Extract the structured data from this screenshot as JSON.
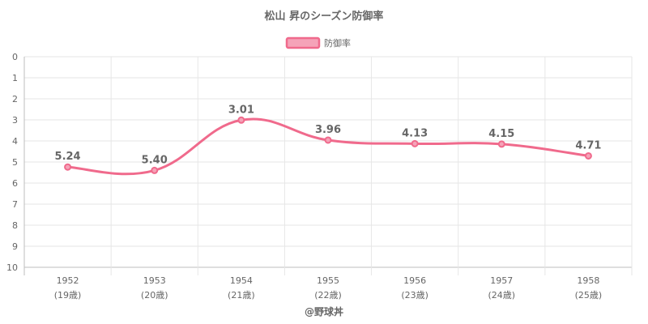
{
  "chart_data": {
    "type": "line",
    "title": "松山 昇のシーズン防御率",
    "categories": [
      "1952",
      "1953",
      "1954",
      "1955",
      "1956",
      "1957",
      "1958"
    ],
    "category_sublabels": [
      "(19歳)",
      "(20歳)",
      "(21歳)",
      "(22歳)",
      "(23歳)",
      "(24歳)",
      "(25歳)"
    ],
    "series": [
      {
        "name": "防御率",
        "values": [
          5.24,
          5.4,
          3.01,
          3.96,
          4.13,
          4.15,
          4.71
        ]
      }
    ],
    "data_labels": [
      "5.24",
      "5.40",
      "3.01",
      "3.96",
      "4.13",
      "4.15",
      "4.71"
    ],
    "y_ticks": [
      "0",
      "1",
      "2",
      "3",
      "4",
      "5",
      "6",
      "7",
      "8",
      "9",
      "10"
    ],
    "ylim": [
      0,
      10
    ],
    "y_reversed": true,
    "grid": true,
    "legend_position": "top-center",
    "colors": {
      "line": "#f06a8c",
      "legend_fill": "#f5a3b8",
      "grid": "#e6e6e6",
      "text": "#666666"
    },
    "footer": "@野球丼"
  }
}
